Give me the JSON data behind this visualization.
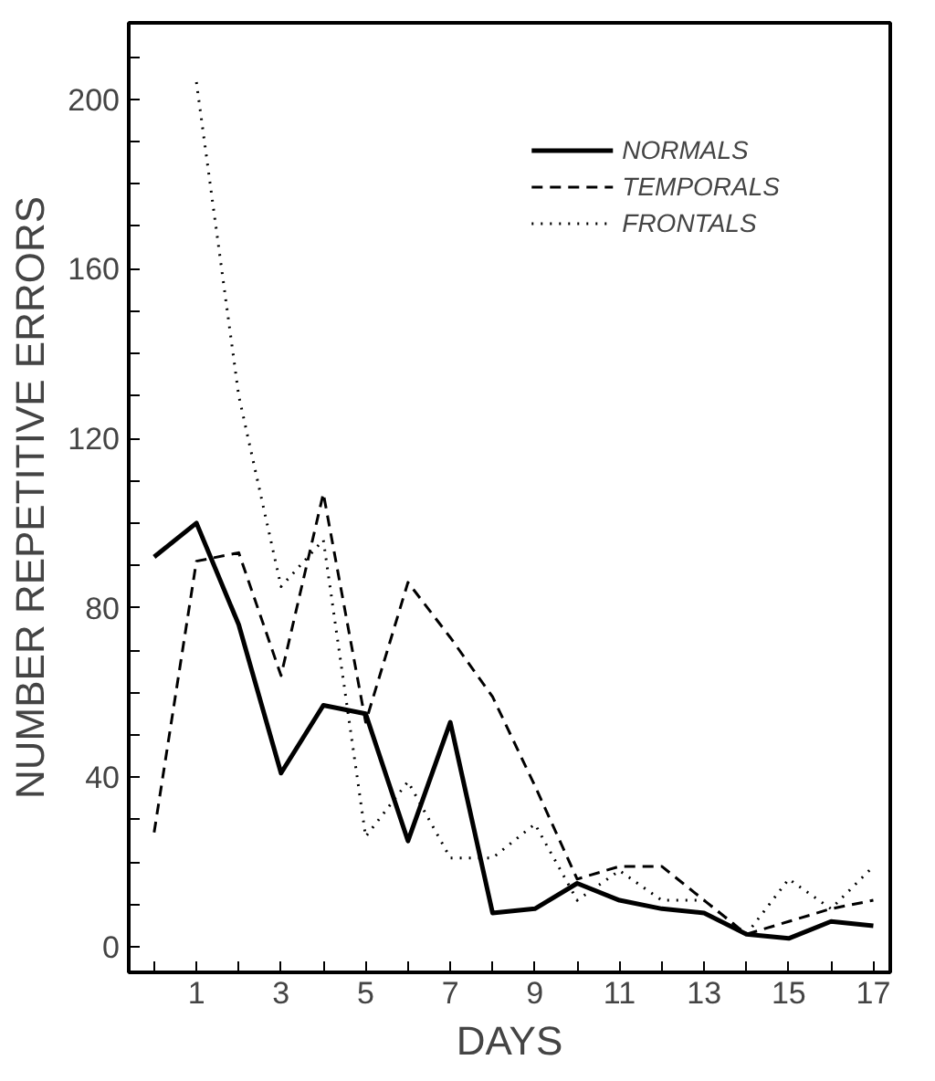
{
  "chart_data": {
    "type": "line",
    "xlabel": "DAYS",
    "ylabel": "NUMBER REPETITIVE ERRORS",
    "x": [
      0,
      1,
      2,
      3,
      4,
      5,
      6,
      7,
      8,
      9,
      10,
      11,
      12,
      13,
      14,
      15,
      16,
      17
    ],
    "xlim": [
      -0.6,
      17.4
    ],
    "ylim": [
      -6,
      218
    ],
    "xticks": [
      {
        "value": 0,
        "label": null
      },
      1,
      {
        "value": 2,
        "label": null
      },
      3,
      {
        "value": 4,
        "label": null
      },
      5,
      {
        "value": 6,
        "label": null
      },
      7,
      {
        "value": 8,
        "label": null
      },
      9,
      {
        "value": 10,
        "label": null
      },
      11,
      {
        "value": 12,
        "label": null
      },
      13,
      {
        "value": 14,
        "label": null
      },
      15,
      {
        "value": 16,
        "label": null
      },
      17
    ],
    "yticks": [
      0,
      {
        "value": 10,
        "label": null
      },
      {
        "value": 20,
        "label": null
      },
      {
        "value": 30,
        "label": null
      },
      40,
      {
        "value": 50,
        "label": null
      },
      {
        "value": 60,
        "label": null
      },
      {
        "value": 70,
        "label": null
      },
      80,
      {
        "value": 90,
        "label": null
      },
      {
        "value": 100,
        "label": null
      },
      {
        "value": 110,
        "label": null
      },
      120,
      {
        "value": 130,
        "label": null
      },
      {
        "value": 140,
        "label": null
      },
      {
        "value": 150,
        "label": null
      },
      160,
      {
        "value": 170,
        "label": null
      },
      {
        "value": 180,
        "label": null
      },
      {
        "value": 190,
        "label": null
      },
      200,
      {
        "value": 210,
        "label": null
      }
    ],
    "series": [
      {
        "name": "NORMALS",
        "color": "#000000",
        "line_style": "solid",
        "values": [
          92,
          100,
          76,
          41,
          57,
          55,
          25,
          53,
          8,
          9,
          15,
          11,
          9,
          8,
          3,
          2,
          6,
          5
        ]
      },
      {
        "name": "TEMPORALS",
        "color": "#000000",
        "line_style": "dashed",
        "values": [
          27,
          91,
          93,
          64,
          107,
          53,
          86,
          73,
          59,
          38,
          16,
          19,
          19,
          11,
          3,
          6,
          9,
          11
        ]
      },
      {
        "name": "FRONTALS",
        "color": "#000000",
        "line_style": "dotted",
        "values": [
          null,
          204,
          130,
          85,
          96,
          26,
          39,
          21,
          21,
          29,
          11,
          18,
          11,
          11,
          3,
          16,
          9,
          19
        ]
      }
    ],
    "legend": "top right",
    "grid": false
  }
}
